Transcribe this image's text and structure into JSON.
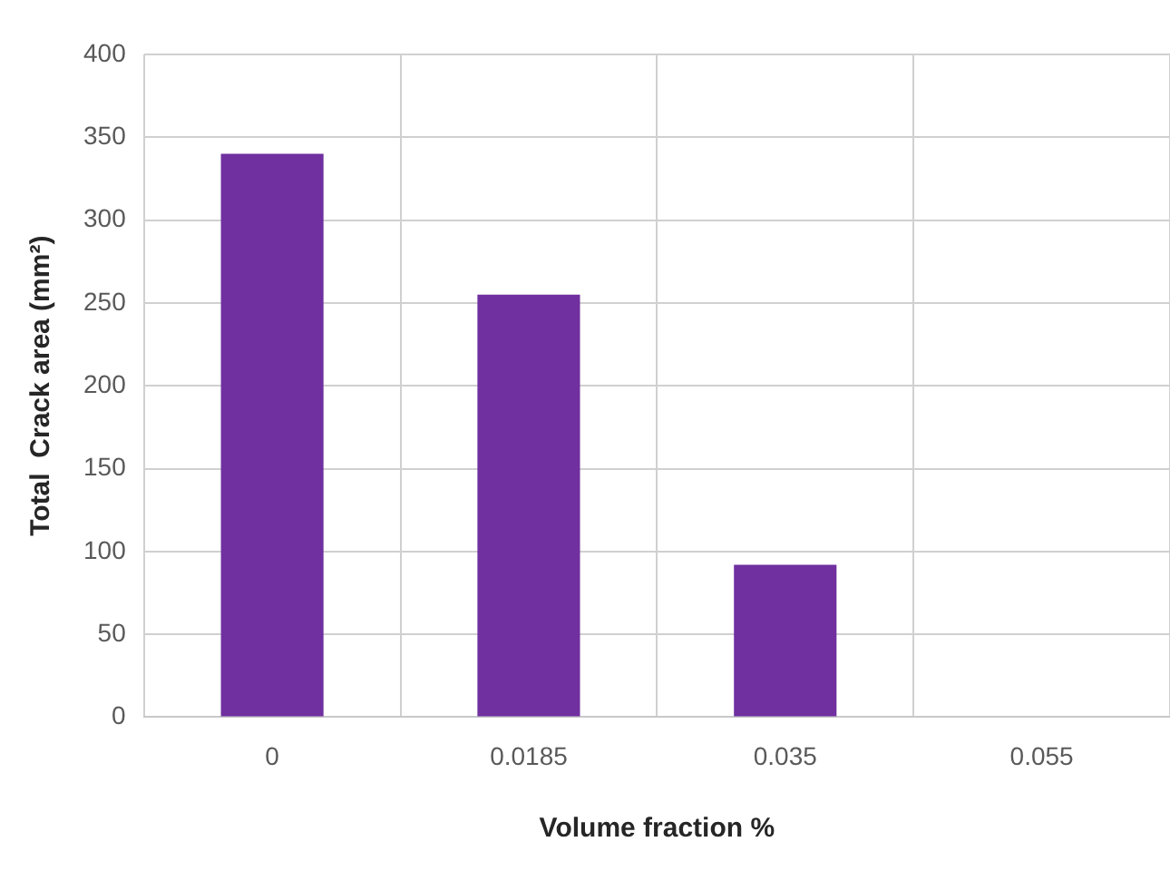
{
  "chart_data": {
    "type": "bar",
    "xlabel": "Volume fraction %",
    "ylabel": "Total  Crack area (mm²)",
    "categories": [
      "0",
      "0.0185",
      "0.035",
      "0.055"
    ],
    "values": [
      340,
      255,
      92,
      0
    ],
    "color": "#7030a0",
    "ylim": [
      0,
      400
    ],
    "yticks": [
      0,
      50,
      100,
      150,
      200,
      250,
      300,
      350,
      400
    ],
    "grid": true,
    "legend": false
  }
}
